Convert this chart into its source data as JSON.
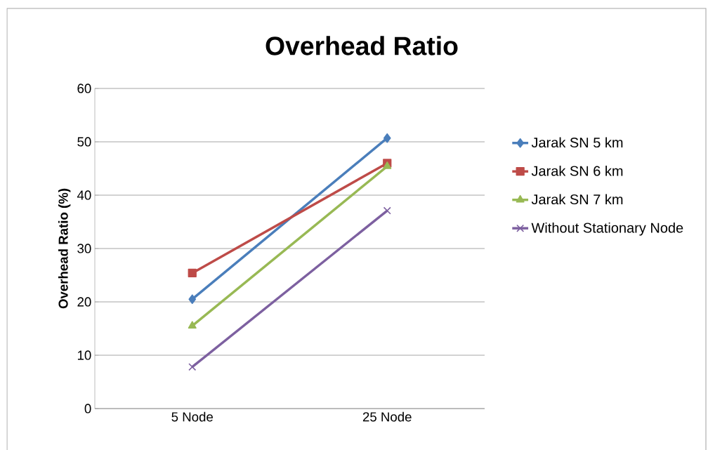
{
  "chart_data": {
    "type": "line",
    "title": "Overhead Ratio",
    "ylabel": "Overhead Ratio (%)",
    "categories": [
      "5 Node",
      "25 Node"
    ],
    "series": [
      {
        "name": "Jarak SN 5 km",
        "color": "#4a7ebb",
        "marker": "diamond",
        "values": [
          20.5,
          50.7
        ]
      },
      {
        "name": "Jarak SN 6 km",
        "color": "#be4b48",
        "marker": "square",
        "values": [
          25.4,
          46.0
        ]
      },
      {
        "name": "Jarak SN 7 km",
        "color": "#98b954",
        "marker": "triangle",
        "values": [
          15.5,
          45.4
        ]
      },
      {
        "name": "Without Stationary Node",
        "color": "#7d60a0",
        "marker": "cross",
        "values": [
          7.8,
          37.1
        ]
      }
    ],
    "ylim": [
      0,
      60
    ],
    "yticks": [
      0,
      10,
      20,
      30,
      40,
      50,
      60
    ],
    "grid": "y",
    "legend": "right"
  }
}
